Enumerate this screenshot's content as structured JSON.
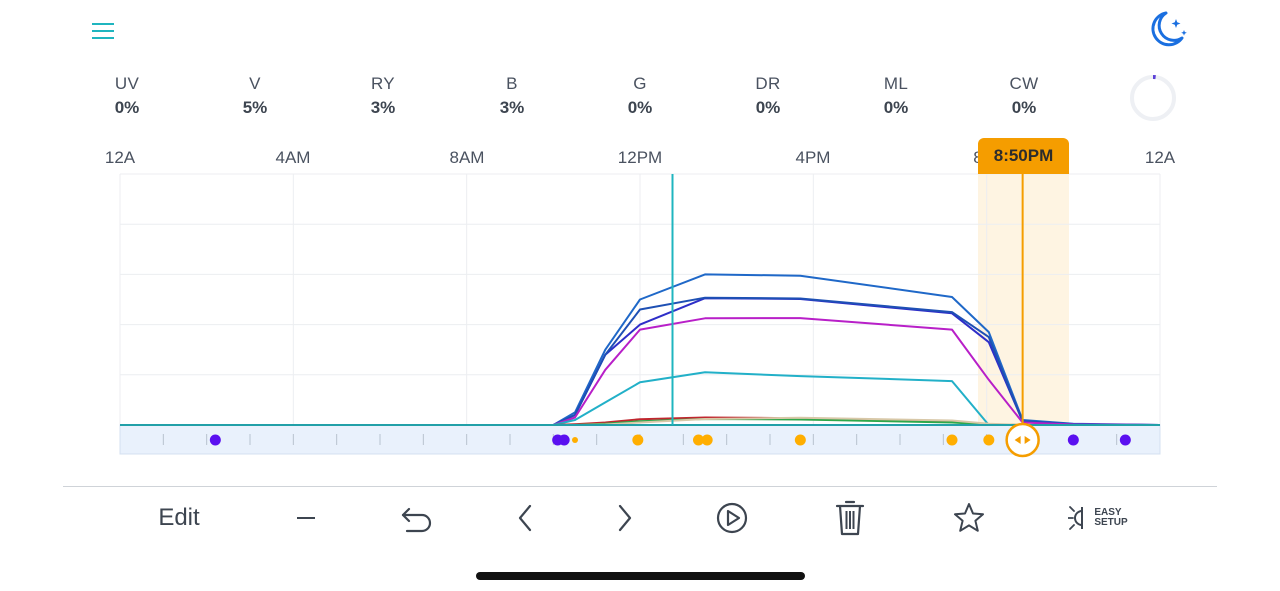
{
  "header": {
    "menu_icon": "hamburger-menu-icon",
    "mode_icon": "moon-stars-icon"
  },
  "channels": [
    {
      "name": "UV",
      "value": "0%"
    },
    {
      "name": "V",
      "value": "5%"
    },
    {
      "name": "RY",
      "value": "3%"
    },
    {
      "name": "B",
      "value": "3%"
    },
    {
      "name": "G",
      "value": "0%"
    },
    {
      "name": "DR",
      "value": "0%"
    },
    {
      "name": "ML",
      "value": "0%"
    },
    {
      "name": "CW",
      "value": "0%"
    }
  ],
  "progress_ring": {
    "value": 0.01,
    "color": "#5b3fd6"
  },
  "timeline": {
    "labels": [
      "12A",
      "4AM",
      "8AM",
      "12PM",
      "4PM",
      "8",
      "12A"
    ],
    "selected_time": "8:50PM",
    "selected_hour": 20.83,
    "current_hour": 12.75,
    "accent_color": "#f59d00",
    "now_line_color": "#1fb5bf"
  },
  "chart_data": {
    "type": "line",
    "x_unit": "hour of day",
    "xlim": [
      0,
      24
    ],
    "ylim": [
      0,
      100
    ],
    "grid": true,
    "series": [
      {
        "color": "#1f68c8",
        "x": [
          0,
          10,
          10.5,
          11.2,
          12,
          13.5,
          15.7,
          19.2,
          20.05,
          20.83,
          22,
          24
        ],
        "y": [
          0,
          0,
          5,
          30,
          50,
          60,
          59.5,
          51,
          37,
          2,
          0.5,
          0
        ]
      },
      {
        "color": "#2e2ec8",
        "x": [
          0,
          10,
          10.5,
          11.2,
          12,
          13.5,
          15.7,
          19.2,
          20.05,
          20.83,
          22,
          24
        ],
        "y": [
          0,
          0,
          4,
          28,
          40,
          50.5,
          50.2,
          44.5,
          33,
          1.5,
          0.3,
          0
        ]
      },
      {
        "color": "#1e50b4",
        "x": [
          0,
          10,
          10.5,
          11.2,
          12,
          13.5,
          15.7,
          19.2,
          20.05,
          20.83,
          22,
          24
        ],
        "y": [
          0,
          0,
          4,
          28,
          46,
          50.7,
          50.4,
          45,
          35,
          1.5,
          0.3,
          0
        ]
      },
      {
        "color": "#b81fc8",
        "x": [
          0,
          10,
          10.5,
          11.2,
          12,
          13.5,
          15.7,
          19.2,
          20.05,
          20.83,
          22,
          24
        ],
        "y": [
          0,
          0,
          3,
          22,
          38,
          42.5,
          42.6,
          38,
          18,
          1,
          0.2,
          0
        ]
      },
      {
        "color": "#22b0c8",
        "x": [
          0,
          10,
          10.5,
          11.2,
          12,
          13.5,
          15.7,
          19.2,
          20.05,
          20.83,
          22,
          24
        ],
        "y": [
          0,
          0,
          2,
          9,
          17,
          21,
          19.5,
          17.5,
          0,
          0,
          0,
          0
        ]
      },
      {
        "color": "#c0262e",
        "x": [
          0,
          10,
          10.5,
          11.2,
          12,
          13.5,
          15.7,
          19.2,
          20.05,
          20.83,
          22,
          24
        ],
        "y": [
          0,
          0,
          0.3,
          1,
          2.3,
          3,
          2.7,
          1.6,
          0.3,
          0,
          0,
          0
        ]
      },
      {
        "color": "#2ea84a",
        "x": [
          0,
          10,
          10.5,
          11.2,
          12,
          13.5,
          15.7,
          19.2,
          20.05,
          20.83,
          22,
          24
        ],
        "y": [
          0,
          0,
          0,
          0.5,
          1.5,
          2.4,
          2.2,
          1,
          0.2,
          0,
          0,
          0
        ]
      },
      {
        "color": "#d8c8a8",
        "x": [
          0,
          10,
          10.5,
          11.2,
          12,
          13.5,
          15.7,
          19.2,
          20.05,
          20.83,
          22,
          24
        ],
        "y": [
          0,
          0,
          0,
          0.2,
          1,
          2.4,
          2.9,
          1.8,
          0.5,
          0,
          0,
          0
        ]
      },
      {
        "color": "#22a0a8",
        "x": [
          0,
          24
        ],
        "y": [
          0,
          0
        ]
      }
    ],
    "schedule_points": [
      {
        "hour": 2.2,
        "color": "#5a10f0",
        "size": "large"
      },
      {
        "hour": 10.1,
        "color": "#5a10f0",
        "size": "large"
      },
      {
        "hour": 10.25,
        "color": "#5a10f0",
        "size": "large"
      },
      {
        "hour": 10.5,
        "color": "#ffae00",
        "size": "small"
      },
      {
        "hour": 11.95,
        "color": "#ffae00",
        "size": "large"
      },
      {
        "hour": 13.35,
        "color": "#ffae00",
        "size": "large"
      },
      {
        "hour": 13.55,
        "color": "#ffae00",
        "size": "large"
      },
      {
        "hour": 15.7,
        "color": "#ffae00",
        "size": "large"
      },
      {
        "hour": 19.2,
        "color": "#ffae00",
        "size": "large"
      },
      {
        "hour": 20.05,
        "color": "#ffae00",
        "size": "large"
      },
      {
        "hour": 22.0,
        "color": "#5a10f0",
        "size": "large"
      },
      {
        "hour": 23.2,
        "color": "#5a10f0",
        "size": "large"
      }
    ]
  },
  "toolbar": {
    "edit_label": "Edit",
    "minus_icon": "minus-icon",
    "undo_icon": "undo-icon",
    "prev_icon": "chevron-left-icon",
    "next_icon": "chevron-right-icon",
    "play_icon": "play-circle-icon",
    "delete_icon": "trash-icon",
    "favorite_icon": "star-icon",
    "easy_setup_line1": "EASY",
    "easy_setup_line2": "SETUP"
  }
}
